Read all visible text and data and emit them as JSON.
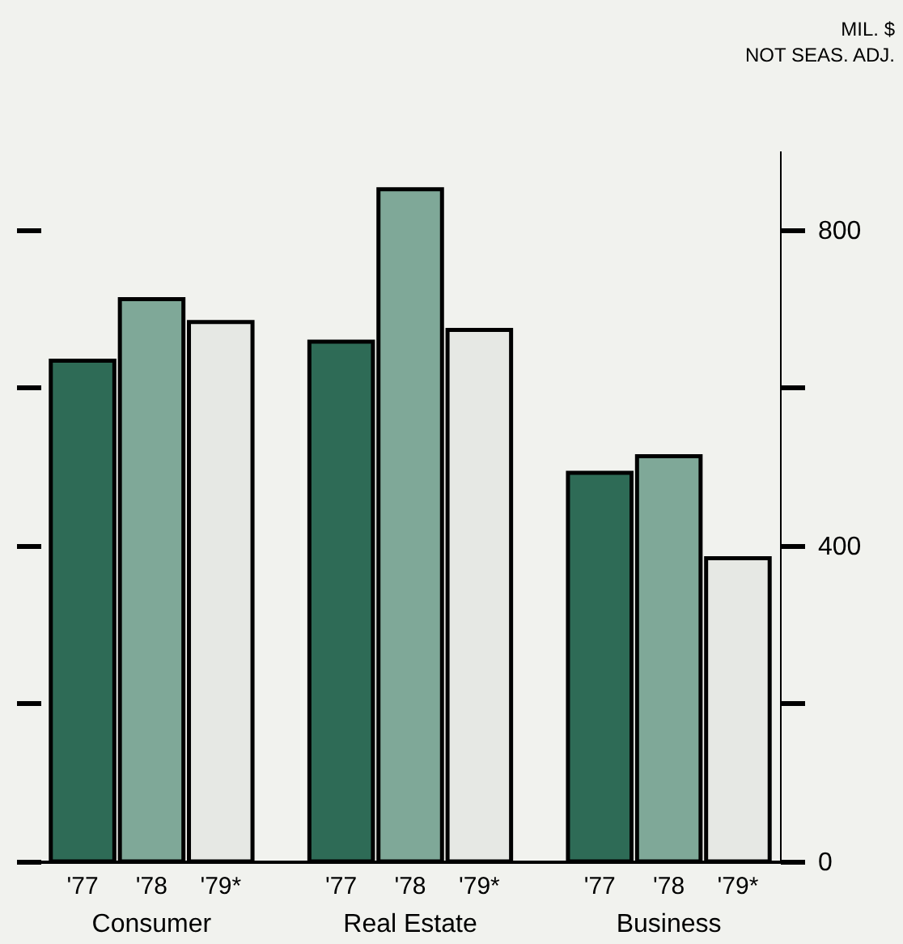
{
  "chart_data": {
    "type": "bar",
    "annotations": [
      "MIL. $\nNOT SEAS. ADJ."
    ],
    "categories": [
      "Consumer",
      "Real Estate",
      "Business"
    ],
    "series": [
      {
        "name": "'77",
        "color": "#2e6b56",
        "values": [
          634,
          658,
          492
        ]
      },
      {
        "name": "'78",
        "color": "#7fa898",
        "values": [
          712,
          851,
          513
        ]
      },
      {
        "name": "'79*",
        "color": "#e6e8e4",
        "values": [
          683,
          673,
          384
        ]
      }
    ],
    "ylim": [
      0,
      900
    ],
    "yticks": [
      0,
      {
        "value": 200,
        "label": null
      },
      400,
      {
        "value": 600,
        "label": null
      },
      800
    ],
    "grid": false,
    "legend": false
  }
}
